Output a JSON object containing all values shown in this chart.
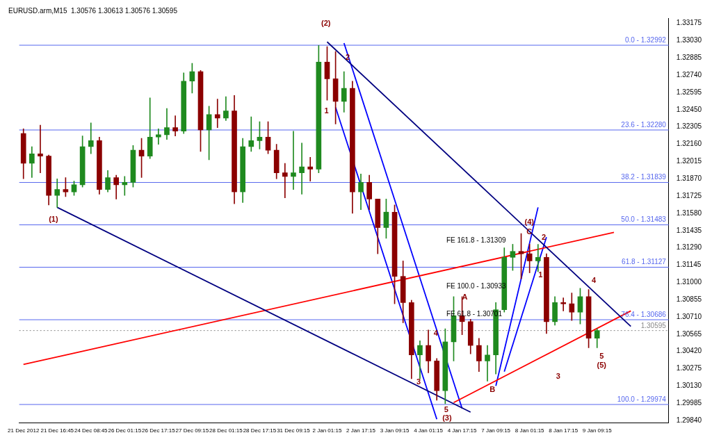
{
  "chart_data": {
    "type": "candlestick",
    "title": "EURUSD.arm,M15  1.30576 1.30613 1.30576 1.30595",
    "categories": [
      "21 Dec 2012",
      null,
      null,
      null,
      "21 Dec 16:45",
      null,
      null,
      null,
      "24 Dec 08:45",
      null,
      null,
      null,
      "26 Dec 01:15",
      null,
      null,
      null,
      "26 Dec 17:15",
      null,
      null,
      null,
      "27 Dec 09:15",
      null,
      null,
      null,
      "28 Dec 01:15",
      null,
      null,
      null,
      "28 Dec 17:15",
      null,
      null,
      null,
      "31 Dec 09:15",
      null,
      null,
      null,
      "2 Jan 01:15",
      null,
      null,
      null,
      "2 Jan 17:15",
      null,
      null,
      null,
      "3 Jan 09:15",
      null,
      null,
      null,
      "4 Jan 01:15",
      null,
      null,
      null,
      "4 Jan 17:15",
      null,
      null,
      null,
      "7 Jan 09:15",
      null,
      null,
      null,
      "8 Jan 01:15",
      null,
      null,
      null,
      "8 Jan 17:15",
      null,
      null,
      null,
      "9 Jan 09:15",
      null,
      null,
      null,
      null,
      null,
      null,
      null,
      null
    ],
    "ohlc": [
      [
        1.3225,
        1.3229,
        1.3187,
        1.32
      ],
      [
        1.32,
        1.3214,
        1.3188,
        1.3208
      ],
      [
        1.3208,
        1.3232,
        1.3192,
        1.3206
      ],
      [
        1.3206,
        1.3207,
        1.3165,
        1.3173
      ],
      [
        1.3173,
        1.3187,
        1.3163,
        1.3178
      ],
      [
        1.3178,
        1.3188,
        1.3172,
        1.3176
      ],
      [
        1.3176,
        1.3185,
        1.3173,
        1.3182
      ],
      [
        1.3182,
        1.3223,
        1.318,
        1.3214
      ],
      [
        1.3214,
        1.3234,
        1.3208,
        1.3219
      ],
      [
        1.3219,
        1.3222,
        1.3174,
        1.3178
      ],
      [
        1.3178,
        1.3194,
        1.3176,
        1.3188
      ],
      [
        1.3188,
        1.319,
        1.317,
        1.3182
      ],
      [
        1.3182,
        1.3189,
        1.3173,
        1.3184
      ],
      [
        1.3184,
        1.3215,
        1.318,
        1.3211
      ],
      [
        1.3211,
        1.3221,
        1.3188,
        1.3206
      ],
      [
        1.3206,
        1.3255,
        1.3204,
        1.3222
      ],
      [
        1.3222,
        1.3229,
        1.3216,
        1.3224
      ],
      [
        1.3224,
        1.3246,
        1.322,
        1.323
      ],
      [
        1.323,
        1.324,
        1.3223,
        1.3227
      ],
      [
        1.3227,
        1.3276,
        1.3225,
        1.3269
      ],
      [
        1.3269,
        1.3284,
        1.3259,
        1.3277
      ],
      [
        1.3277,
        1.3278,
        1.321,
        1.3228
      ],
      [
        1.3228,
        1.3248,
        1.3203,
        1.3241
      ],
      [
        1.3241,
        1.3254,
        1.323,
        1.3238
      ],
      [
        1.3238,
        1.3256,
        1.3236,
        1.3244
      ],
      [
        1.3244,
        1.3257,
        1.3166,
        1.3176
      ],
      [
        1.3176,
        1.3221,
        1.3167,
        1.3214
      ],
      [
        1.3214,
        1.3239,
        1.321,
        1.3219
      ],
      [
        1.3219,
        1.3235,
        1.3212,
        1.3222
      ],
      [
        1.3222,
        1.3235,
        1.3208,
        1.3211
      ],
      [
        1.3211,
        1.3216,
        1.3187,
        1.3192
      ],
      [
        1.3192,
        1.32,
        1.3171,
        1.3189
      ],
      [
        1.3189,
        1.3227,
        1.3178,
        1.3192
      ],
      [
        1.3192,
        1.3217,
        1.3174,
        1.3197
      ],
      [
        1.3197,
        1.3205,
        1.3185,
        1.3195
      ],
      [
        1.3195,
        1.3299,
        1.3192,
        1.3285
      ],
      [
        1.3285,
        1.3298,
        1.3253,
        1.3271
      ],
      [
        1.3271,
        1.3294,
        1.3233,
        1.3252
      ],
      [
        1.3252,
        1.3277,
        1.3243,
        1.3263
      ],
      [
        1.3263,
        1.3269,
        1.3158,
        1.3176
      ],
      [
        1.3176,
        1.3191,
        1.3161,
        1.3184
      ],
      [
        1.3184,
        1.319,
        1.3161,
        1.317
      ],
      [
        1.317,
        1.317,
        1.3124,
        1.3146
      ],
      [
        1.3146,
        1.317,
        1.3137,
        1.3159
      ],
      [
        1.3159,
        1.3165,
        1.3082,
        1.3105
      ],
      [
        1.3105,
        1.3118,
        1.3066,
        1.3083
      ],
      [
        1.3083,
        1.3085,
        1.3019,
        1.3039
      ],
      [
        1.3039,
        1.3051,
        1.3019,
        1.3047
      ],
      [
        1.3047,
        1.306,
        1.3024,
        1.3034
      ],
      [
        1.3034,
        1.3036,
        1.3001,
        1.3009
      ],
      [
        1.3009,
        1.3061,
        1.2998,
        1.305
      ],
      [
        1.305,
        1.3088,
        1.3034,
        1.3072
      ],
      [
        1.3072,
        1.3088,
        1.3056,
        1.3067
      ],
      [
        1.3067,
        1.3069,
        1.304,
        1.3047
      ],
      [
        1.3047,
        1.3053,
        1.3025,
        1.3034
      ],
      [
        1.3034,
        1.3047,
        1.3017,
        1.3039
      ],
      [
        1.3039,
        1.3083,
        1.3023,
        1.3077
      ],
      [
        1.3077,
        1.3129,
        1.3075,
        1.3121
      ],
      [
        1.3121,
        1.3132,
        1.311,
        1.3126
      ],
      [
        1.3126,
        1.3141,
        1.3103,
        1.3124
      ],
      [
        1.3124,
        1.3132,
        1.3108,
        1.3118
      ],
      [
        1.3118,
        1.3132,
        1.3109,
        1.3121
      ],
      [
        1.3121,
        1.3124,
        1.3057,
        1.3067
      ],
      [
        1.3067,
        1.3088,
        1.3064,
        1.3083
      ],
      [
        1.3083,
        1.3087,
        1.3076,
        1.3082
      ],
      [
        1.3082,
        1.3091,
        1.3068,
        1.3075
      ],
      [
        1.3075,
        1.3095,
        1.3065,
        1.3088
      ],
      [
        1.3088,
        1.3094,
        1.3045,
        1.3053
      ],
      [
        1.3053,
        1.3061,
        1.3045,
        1.30595
      ],
      null,
      null,
      null,
      null,
      null,
      null,
      null,
      null
    ],
    "series": [
      {
        "type": "line",
        "color": "#000080",
        "values": [
          null,
          null,
          null,
          null,
          1.3163,
          null,
          null,
          null,
          null,
          null,
          null,
          null,
          null,
          null,
          null,
          null,
          null,
          null,
          null,
          null,
          null,
          null,
          null,
          null,
          null,
          null,
          null,
          null,
          null,
          null,
          null,
          null,
          null,
          null,
          null,
          null,
          null,
          null,
          null,
          null,
          null,
          null,
          null,
          null,
          null,
          null,
          null,
          null,
          null,
          null,
          null,
          null,
          null,
          1.2991,
          null,
          null,
          null,
          null,
          null,
          null,
          null,
          null,
          null,
          null,
          null,
          null,
          null,
          null,
          null,
          null,
          null,
          null,
          null,
          null,
          null,
          null,
          null
        ]
      },
      {
        "type": "line",
        "color": "#000080",
        "values": [
          null,
          null,
          null,
          null,
          null,
          null,
          null,
          null,
          null,
          null,
          null,
          null,
          null,
          null,
          null,
          null,
          null,
          null,
          null,
          null,
          null,
          null,
          null,
          null,
          null,
          null,
          null,
          null,
          null,
          null,
          null,
          null,
          null,
          null,
          null,
          null,
          1.3302,
          null,
          null,
          null,
          null,
          null,
          null,
          null,
          null,
          null,
          null,
          null,
          null,
          null,
          null,
          null,
          null,
          null,
          null,
          null,
          null,
          null,
          null,
          null,
          null,
          null,
          null,
          null,
          null,
          null,
          null,
          null,
          null,
          null,
          null,
          null,
          1.3063,
          null,
          null,
          null,
          null
        ]
      },
      {
        "type": "line",
        "color": "#ff0000",
        "values": [
          1.3031,
          null,
          null,
          null,
          null,
          null,
          null,
          null,
          null,
          null,
          null,
          null,
          null,
          null,
          null,
          null,
          null,
          null,
          null,
          null,
          null,
          null,
          null,
          null,
          null,
          null,
          null,
          null,
          null,
          null,
          null,
          null,
          null,
          null,
          null,
          null,
          null,
          null,
          null,
          null,
          null,
          null,
          null,
          null,
          null,
          null,
          null,
          null,
          null,
          null,
          null,
          null,
          null,
          null,
          null,
          null,
          null,
          null,
          null,
          null,
          null,
          null,
          null,
          null,
          null,
          null,
          null,
          null,
          null,
          null,
          1.3142,
          null,
          null,
          null,
          null,
          null,
          null
        ]
      },
      {
        "type": "line",
        "color": "#ff0000",
        "values": [
          null,
          null,
          null,
          null,
          null,
          null,
          null,
          null,
          null,
          null,
          null,
          null,
          null,
          null,
          null,
          null,
          null,
          null,
          null,
          null,
          null,
          null,
          null,
          null,
          null,
          null,
          null,
          null,
          null,
          null,
          null,
          null,
          null,
          null,
          null,
          null,
          null,
          null,
          null,
          null,
          null,
          null,
          null,
          null,
          null,
          null,
          null,
          null,
          null,
          null,
          null,
          1.2999,
          null,
          null,
          null,
          null,
          null,
          null,
          null,
          null,
          null,
          null,
          null,
          null,
          null,
          null,
          null,
          null,
          null,
          null,
          null,
          null,
          1.3076,
          null,
          null,
          null,
          null
        ]
      },
      {
        "type": "line",
        "color": "#0000ff",
        "values": [
          null,
          null,
          null,
          null,
          null,
          null,
          null,
          null,
          null,
          null,
          null,
          null,
          null,
          null,
          null,
          null,
          null,
          null,
          null,
          null,
          null,
          null,
          null,
          null,
          null,
          null,
          null,
          null,
          null,
          null,
          null,
          null,
          null,
          null,
          null,
          null,
          null,
          1.3247,
          null,
          null,
          null,
          null,
          null,
          null,
          null,
          null,
          null,
          null,
          null,
          1.2985,
          null,
          null,
          null,
          null,
          null,
          null,
          null,
          null,
          null,
          null,
          null,
          null,
          null,
          null,
          null,
          null,
          null,
          null,
          null,
          null,
          null,
          null,
          null,
          null,
          null,
          null,
          null
        ]
      },
      {
        "type": "line",
        "color": "#0000ff",
        "values": [
          null,
          null,
          null,
          null,
          null,
          null,
          null,
          null,
          null,
          null,
          null,
          null,
          null,
          null,
          null,
          null,
          null,
          null,
          null,
          null,
          null,
          null,
          null,
          null,
          null,
          null,
          null,
          null,
          null,
          null,
          null,
          null,
          null,
          null,
          null,
          null,
          null,
          null,
          1.3301,
          null,
          null,
          null,
          null,
          null,
          null,
          null,
          null,
          null,
          null,
          null,
          null,
          null,
          1.2994,
          null,
          null,
          null,
          null,
          null,
          null,
          null,
          null,
          null,
          null,
          null,
          null,
          null,
          null,
          null,
          null,
          null,
          null,
          null,
          null,
          null,
          null,
          null,
          null
        ]
      },
      {
        "type": "line",
        "color": "#0000ff",
        "values": [
          null,
          null,
          null,
          null,
          null,
          null,
          null,
          null,
          null,
          null,
          null,
          null,
          null,
          null,
          null,
          null,
          null,
          null,
          null,
          null,
          null,
          null,
          null,
          null,
          null,
          null,
          null,
          null,
          null,
          null,
          null,
          null,
          null,
          null,
          null,
          null,
          null,
          null,
          null,
          null,
          null,
          null,
          null,
          null,
          null,
          null,
          null,
          null,
          null,
          null,
          null,
          null,
          null,
          null,
          null,
          null,
          1.3013,
          null,
          null,
          null,
          null,
          1.3163,
          null,
          null,
          null,
          null,
          null,
          null,
          null,
          null,
          null,
          null,
          null,
          null,
          null,
          null,
          null
        ]
      },
      {
        "type": "line",
        "color": "#0000ff",
        "values": [
          null,
          null,
          null,
          null,
          null,
          null,
          null,
          null,
          null,
          null,
          null,
          null,
          null,
          null,
          null,
          null,
          null,
          null,
          null,
          null,
          null,
          null,
          null,
          null,
          null,
          null,
          null,
          null,
          null,
          null,
          null,
          null,
          null,
          null,
          null,
          null,
          null,
          null,
          null,
          null,
          null,
          null,
          null,
          null,
          null,
          null,
          null,
          null,
          null,
          null,
          null,
          null,
          null,
          null,
          null,
          null,
          null,
          1.3025,
          null,
          null,
          null,
          null,
          1.3138,
          null,
          null,
          null,
          null,
          null,
          null,
          null,
          null,
          null,
          null,
          null,
          null,
          null,
          null
        ]
      }
    ],
    "ref_lines": [
      {
        "axis": "y",
        "value": 1.32992,
        "color": "#5566ee"
      },
      {
        "axis": "y",
        "value": 1.3228,
        "color": "#5566ee"
      },
      {
        "axis": "y",
        "value": 1.31839,
        "color": "#5566ee"
      },
      {
        "axis": "y",
        "value": 1.31483,
        "color": "#5566ee"
      },
      {
        "axis": "y",
        "value": 1.31127,
        "color": "#5566ee"
      },
      {
        "axis": "y",
        "value": 1.30686,
        "color": "#5566ee"
      },
      {
        "axis": "y",
        "value": 1.29974,
        "color": "#5566ee"
      },
      {
        "axis": "y",
        "value": 1.30595,
        "label": "1.30595",
        "color": "#888888",
        "line_style": "dotted"
      }
    ],
    "annotations": [
      "(1)",
      "(2)",
      "1",
      "2",
      "3",
      "4",
      "5",
      "(3)",
      "A",
      "B",
      "C",
      "(4)",
      "1",
      "2",
      "3",
      "4",
      "5",
      "(5)",
      "FE 161.8 - 1.31309",
      "FE 100.0 - 1.30933",
      "FE 61.8 - 1.30701",
      {
        "text": "0.0 - 1.32992",
        "y": 1.32992
      },
      {
        "text": "23.6 - 1.32280",
        "y": 1.3228
      },
      {
        "text": "38.2 - 1.31839",
        "y": 1.31839
      },
      {
        "text": "50.0 - 1.31483",
        "y": 1.31483
      },
      {
        "text": "61.8 - 1.31127",
        "y": 1.31127
      },
      {
        "text": "76.4 - 1.30686",
        "y": 1.30686
      },
      {
        "text": "100.0 - 1.29974",
        "y": 1.29974
      }
    ],
    "ylim": [
      1.2982,
      1.3322
    ],
    "yticks": [
      1.33175,
      {
        "value": 1.3303,
        "label": "1.33030"
      },
      1.32885,
      {
        "value": 1.3274,
        "label": "1.32740"
      },
      1.32595,
      {
        "value": 1.3245,
        "label": "1.32450"
      },
      1.32305,
      {
        "value": 1.3216,
        "label": "1.32160"
      },
      1.32015,
      {
        "value": 1.3187,
        "label": "1.31870"
      },
      1.31725,
      {
        "value": 1.3158,
        "label": "1.31580"
      },
      1.31435,
      {
        "value": 1.3129,
        "label": "1.31290"
      },
      1.31145,
      {
        "value": 1.31,
        "label": "1.31000"
      },
      1.30855,
      {
        "value": 1.3071,
        "label": "1.30710"
      },
      1.30565,
      {
        "value": 1.3042,
        "label": "1.30420"
      },
      1.30275,
      {
        "value": 1.3013,
        "label": "1.30130"
      },
      1.29985,
      {
        "value": 1.2984,
        "label": "1.29840"
      }
    ],
    "grid": false,
    "legend": false
  }
}
